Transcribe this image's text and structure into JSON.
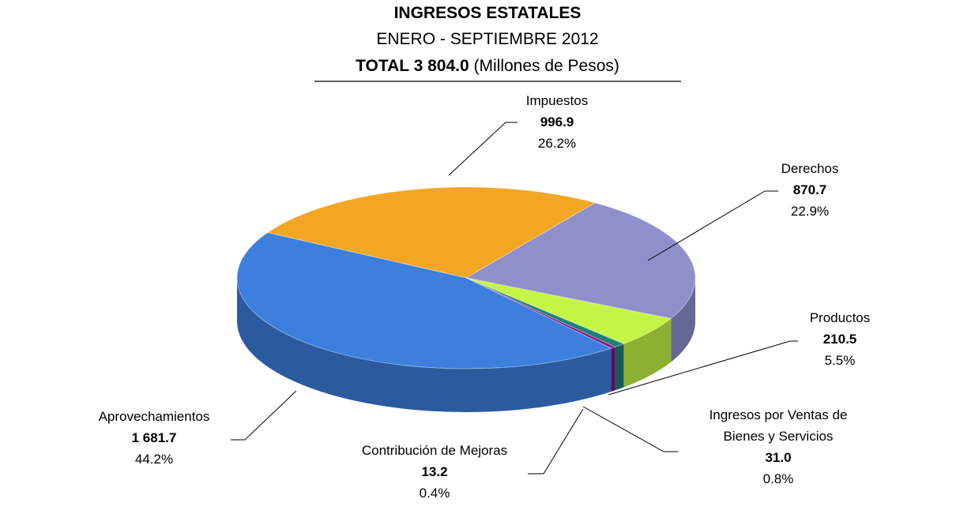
{
  "chart_data": {
    "type": "pie",
    "title": "INGRESOS ESTATALES",
    "subtitle": "ENERO - SEPTIEMBRE 2012",
    "total_label": "TOTAL 3 804.0",
    "units": "(Millones de Pesos)",
    "categories": [
      "Impuestos",
      "Derechos",
      "Productos",
      "Ingresos por Ventas de Bienes y Servicios",
      "Contribución de Mejoras",
      "Aprovechamientos"
    ],
    "values": [
      996.9,
      870.7,
      210.5,
      31.0,
      13.2,
      1681.7
    ],
    "value_labels": [
      "996.9",
      "870.7",
      "210.5",
      "31.0",
      "13.2",
      "1 681.7"
    ],
    "percents": [
      26.2,
      22.9,
      5.5,
      0.8,
      0.4,
      44.2
    ],
    "percent_labels": [
      "26.2%",
      "22.9%",
      "5.5%",
      "0.8%",
      "0.4%",
      "44.2%"
    ],
    "colors": [
      "#f2a623",
      "#8f8fcc",
      "#c4f545",
      "#1f7f7a",
      "#8a0a8a",
      "#3c7fdc"
    ]
  }
}
